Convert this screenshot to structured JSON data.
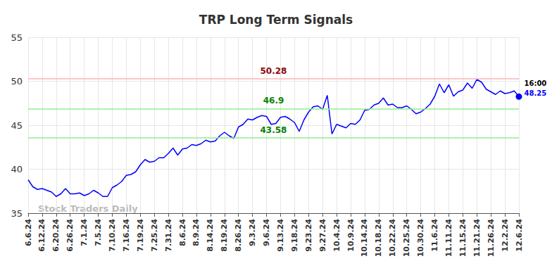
{
  "chart_data": {
    "type": "line",
    "title": "TRP Long Term Signals",
    "categories": [
      "6.6.24",
      null,
      null,
      "6.12.24",
      null,
      null,
      "6.20.24",
      null,
      null,
      "6.26.24",
      null,
      null,
      "7.1.24",
      null,
      null,
      "7.5.24",
      null,
      null,
      "7.10.24",
      null,
      null,
      "7.16.24",
      null,
      null,
      "7.19.24",
      null,
      null,
      "7.25.24",
      null,
      null,
      "7.31.24",
      null,
      null,
      "8.6.24",
      null,
      null,
      "8.9.24",
      null,
      null,
      "8.14.24",
      null,
      null,
      "8.19.24",
      null,
      null,
      "8.26.24",
      null,
      null,
      "9.3.24",
      null,
      null,
      "9.6.24",
      null,
      null,
      "9.13.24",
      null,
      null,
      "9.18.24",
      null,
      null,
      "9.23.24",
      null,
      null,
      "9.27.24",
      null,
      null,
      "10.4.24",
      null,
      null,
      "10.9.24",
      null,
      null,
      "10.14.24",
      null,
      null,
      "10.18.24",
      null,
      null,
      "10.22.24",
      null,
      null,
      "10.25.24",
      null,
      null,
      "10.30.24",
      null,
      null,
      "11.6.24",
      null,
      null,
      "11.11.24",
      null,
      null,
      "11.15.24",
      null,
      null,
      "11.21.24",
      null,
      null,
      "11.26.24",
      null,
      null,
      "12.2.24",
      null,
      null,
      "12.6.24"
    ],
    "values": [
      38.8,
      38.0,
      37.7,
      37.8,
      37.6,
      37.4,
      36.9,
      37.2,
      37.8,
      37.2,
      37.2,
      37.3,
      37.0,
      37.2,
      37.6,
      37.3,
      36.9,
      36.9,
      37.9,
      38.2,
      38.6,
      39.3,
      39.4,
      39.7,
      40.5,
      41.1,
      40.8,
      40.9,
      41.3,
      41.3,
      41.8,
      42.4,
      41.6,
      42.3,
      42.4,
      42.8,
      42.7,
      42.9,
      43.3,
      43.1,
      43.2,
      43.8,
      44.2,
      43.8,
      43.5,
      44.8,
      45.1,
      45.7,
      45.6,
      45.9,
      46.1,
      46.0,
      45.1,
      45.2,
      45.9,
      46.0,
      45.7,
      45.3,
      44.3,
      45.6,
      46.5,
      47.1,
      47.2,
      46.8,
      48.4,
      44.0,
      45.1,
      44.9,
      44.7,
      45.2,
      45.1,
      45.6,
      46.7,
      46.8,
      47.3,
      47.5,
      48.1,
      47.3,
      47.4,
      47.0,
      47.0,
      47.2,
      46.8,
      46.3,
      46.5,
      46.9,
      47.4,
      48.3,
      49.7,
      48.7,
      49.6,
      48.3,
      48.8,
      49.0,
      49.8,
      49.2,
      50.2,
      49.9,
      49.1,
      48.8,
      48.5,
      48.9,
      48.6,
      48.7,
      48.9,
      48.25
    ],
    "color": "#0000ff",
    "marker": "last",
    "end_label": "16:00",
    "watermark": "Stock Traders Daily",
    "reference_lines": [
      {
        "value": 50.28,
        "color": "#ffb3b3"
      },
      {
        "value": 46.9,
        "color": "#90ee90"
      },
      {
        "value": 43.58,
        "color": "#90ee90"
      }
    ],
    "ylim": [
      35,
      55
    ],
    "yticks": [
      35,
      40,
      45,
      50,
      55
    ],
    "grid": true
  }
}
